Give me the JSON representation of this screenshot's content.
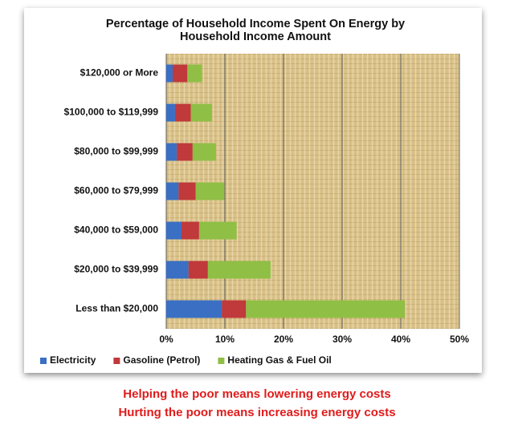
{
  "chart_data": {
    "type": "stacked-bar-horizontal",
    "title": "Percentage of Household Income Spent On Energy by",
    "title_line2": "Household Income Amount",
    "categories": [
      "$120,000 or More",
      "$100,000 to $119,999",
      "$80,000 to $99,999",
      "$60,000 to $79,999",
      "$40,000 to $59,000",
      "$20,000 to $39,999",
      "Less than $20,000"
    ],
    "series": [
      {
        "name": "Electricity",
        "color": "#3a6fc4",
        "values": [
          1.1,
          1.5,
          1.8,
          2.1,
          2.6,
          3.8,
          9.5
        ]
      },
      {
        "name": "Gasoline (Petrol)",
        "color": "#c0393b",
        "values": [
          2.5,
          2.7,
          2.7,
          2.9,
          3.0,
          3.3,
          4.1
        ]
      },
      {
        "name": "Heating Gas & Fuel Oil",
        "color": "#8fbf45",
        "values": [
          2.5,
          3.6,
          4.0,
          4.9,
          6.4,
          10.7,
          27.1
        ]
      }
    ],
    "xlim": [
      0,
      50
    ],
    "xticks": [
      {
        "value": 0,
        "label": "0%"
      },
      {
        "value": 10,
        "label": "10%"
      },
      {
        "value": 20,
        "label": "20%"
      },
      {
        "value": 30,
        "label": "30%"
      },
      {
        "value": 40,
        "label": "40%"
      },
      {
        "value": 50,
        "label": "50%"
      }
    ],
    "grid": true,
    "legend": "bottom"
  },
  "captions": [
    "Helping the poor means lowering energy costs",
    "Hurting the poor means increasing energy costs"
  ]
}
